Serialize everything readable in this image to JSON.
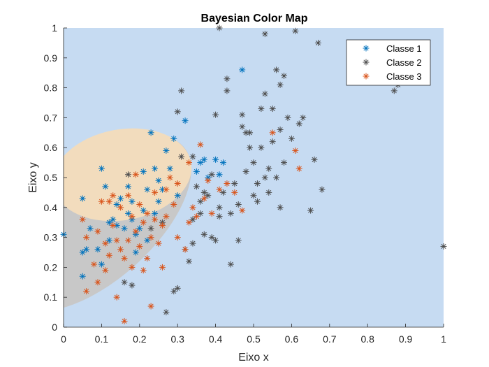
{
  "chart_data": {
    "type": "scatter",
    "title": "Bayesian Color Map",
    "xlabel": "Eixo x",
    "ylabel": "Eixo y",
    "xlim": [
      0,
      1
    ],
    "ylim": [
      0,
      1
    ],
    "xticks": [
      "0",
      "0.1",
      "0.2",
      "0.3",
      "0.4",
      "0.5",
      "0.6",
      "0.7",
      "0.8",
      "0.9",
      "1"
    ],
    "yticks": [
      "0",
      "0.1",
      "0.2",
      "0.3",
      "0.4",
      "0.5",
      "0.6",
      "0.7",
      "0.8",
      "0.9",
      "1"
    ],
    "grid": false,
    "legend_position": "top-right",
    "marker": "asterisk",
    "background_regions": {
      "classe_2_region": "#c6dbf2",
      "classe_3_region": "#f2dcbd",
      "classe_1_region": "#c8c8c8"
    },
    "series": [
      {
        "name": "Classe 1",
        "color": "#0072BD",
        "points": [
          [
            0.0,
            0.31
          ],
          [
            0.05,
            0.25
          ],
          [
            0.06,
            0.26
          ],
          [
            0.05,
            0.17
          ],
          [
            0.07,
            0.33
          ],
          [
            0.09,
            0.26
          ],
          [
            0.1,
            0.21
          ],
          [
            0.1,
            0.53
          ],
          [
            0.12,
            0.35
          ],
          [
            0.13,
            0.36
          ],
          [
            0.14,
            0.41
          ],
          [
            0.15,
            0.43
          ],
          [
            0.14,
            0.34
          ],
          [
            0.16,
            0.33
          ],
          [
            0.17,
            0.47
          ],
          [
            0.18,
            0.42
          ],
          [
            0.18,
            0.36
          ],
          [
            0.19,
            0.31
          ],
          [
            0.2,
            0.33
          ],
          [
            0.21,
            0.39
          ],
          [
            0.21,
            0.52
          ],
          [
            0.22,
            0.46
          ],
          [
            0.23,
            0.65
          ],
          [
            0.24,
            0.53
          ],
          [
            0.24,
            0.38
          ],
          [
            0.25,
            0.42
          ],
          [
            0.26,
            0.46
          ],
          [
            0.27,
            0.59
          ],
          [
            0.28,
            0.53
          ],
          [
            0.29,
            0.63
          ],
          [
            0.3,
            0.44
          ],
          [
            0.32,
            0.69
          ],
          [
            0.35,
            0.52
          ],
          [
            0.36,
            0.55
          ],
          [
            0.37,
            0.56
          ],
          [
            0.38,
            0.5
          ],
          [
            0.4,
            0.56
          ],
          [
            0.41,
            0.51
          ],
          [
            0.42,
            0.55
          ],
          [
            0.47,
            0.86
          ],
          [
            0.17,
            0.38
          ],
          [
            0.12,
            0.29
          ],
          [
            0.11,
            0.47
          ],
          [
            0.05,
            0.43
          ],
          [
            0.25,
            0.49
          ],
          [
            0.19,
            0.25
          ],
          [
            0.22,
            0.29
          ]
        ]
      },
      {
        "name": "Classe 2",
        "color": "#4D4D4D",
        "points": [
          [
            0.17,
            0.51
          ],
          [
            0.16,
            0.15
          ],
          [
            0.18,
            0.14
          ],
          [
            0.23,
            0.33
          ],
          [
            0.26,
            0.35
          ],
          [
            0.27,
            0.05
          ],
          [
            0.29,
            0.12
          ],
          [
            0.3,
            0.13
          ],
          [
            0.31,
            0.79
          ],
          [
            0.3,
            0.72
          ],
          [
            0.32,
            0.26
          ],
          [
            0.33,
            0.22
          ],
          [
            0.34,
            0.28
          ],
          [
            0.34,
            0.57
          ],
          [
            0.35,
            0.47
          ],
          [
            0.36,
            0.42
          ],
          [
            0.36,
            0.38
          ],
          [
            0.37,
            0.31
          ],
          [
            0.38,
            0.44
          ],
          [
            0.39,
            0.3
          ],
          [
            0.39,
            0.51
          ],
          [
            0.4,
            0.29
          ],
          [
            0.41,
            0.4
          ],
          [
            0.41,
            0.37
          ],
          [
            0.42,
            0.45
          ],
          [
            0.43,
            0.83
          ],
          [
            0.43,
            0.79
          ],
          [
            0.44,
            0.38
          ],
          [
            0.44,
            0.21
          ],
          [
            0.45,
            0.48
          ],
          [
            0.46,
            0.29
          ],
          [
            0.47,
            0.71
          ],
          [
            0.47,
            0.67
          ],
          [
            0.48,
            0.52
          ],
          [
            0.49,
            0.65
          ],
          [
            0.5,
            0.44
          ],
          [
            0.5,
            0.55
          ],
          [
            0.51,
            0.48
          ],
          [
            0.52,
            0.6
          ],
          [
            0.52,
            0.73
          ],
          [
            0.53,
            0.5
          ],
          [
            0.53,
            0.78
          ],
          [
            0.54,
            0.45
          ],
          [
            0.55,
            0.62
          ],
          [
            0.55,
            0.73
          ],
          [
            0.56,
            0.5
          ],
          [
            0.56,
            0.86
          ],
          [
            0.57,
            0.81
          ],
          [
            0.57,
            0.66
          ],
          [
            0.58,
            0.55
          ],
          [
            0.58,
            0.84
          ],
          [
            0.59,
            0.7
          ],
          [
            0.6,
            0.63
          ],
          [
            0.61,
            0.99
          ],
          [
            0.62,
            0.68
          ],
          [
            0.63,
            0.7
          ],
          [
            0.65,
            0.39
          ],
          [
            0.66,
            0.56
          ],
          [
            0.67,
            0.95
          ],
          [
            0.68,
            0.46
          ],
          [
            0.53,
            0.98
          ],
          [
            0.41,
            1.0
          ],
          [
            0.4,
            0.71
          ],
          [
            0.48,
            0.65
          ],
          [
            0.57,
            0.4
          ],
          [
            0.87,
            0.79
          ],
          [
            0.88,
            0.81
          ],
          [
            1.0,
            0.27
          ],
          [
            0.31,
            0.57
          ],
          [
            0.34,
            0.36
          ],
          [
            0.37,
            0.45
          ],
          [
            0.46,
            0.41
          ],
          [
            0.49,
            0.6
          ],
          [
            0.51,
            0.42
          ],
          [
            0.54,
            0.53
          ]
        ]
      },
      {
        "name": "Classe 3",
        "color": "#D95319",
        "points": [
          [
            0.05,
            0.36
          ],
          [
            0.06,
            0.3
          ],
          [
            0.06,
            0.12
          ],
          [
            0.08,
            0.21
          ],
          [
            0.09,
            0.15
          ],
          [
            0.1,
            0.42
          ],
          [
            0.11,
            0.28
          ],
          [
            0.11,
            0.19
          ],
          [
            0.12,
            0.24
          ],
          [
            0.13,
            0.44
          ],
          [
            0.13,
            0.34
          ],
          [
            0.14,
            0.29
          ],
          [
            0.14,
            0.1
          ],
          [
            0.15,
            0.4
          ],
          [
            0.15,
            0.26
          ],
          [
            0.16,
            0.23
          ],
          [
            0.16,
            0.02
          ],
          [
            0.17,
            0.44
          ],
          [
            0.17,
            0.29
          ],
          [
            0.18,
            0.37
          ],
          [
            0.19,
            0.51
          ],
          [
            0.19,
            0.32
          ],
          [
            0.2,
            0.27
          ],
          [
            0.2,
            0.41
          ],
          [
            0.21,
            0.19
          ],
          [
            0.21,
            0.35
          ],
          [
            0.22,
            0.38
          ],
          [
            0.22,
            0.23
          ],
          [
            0.23,
            0.07
          ],
          [
            0.23,
            0.3
          ],
          [
            0.24,
            0.36
          ],
          [
            0.24,
            0.45
          ],
          [
            0.25,
            0.28
          ],
          [
            0.26,
            0.34
          ],
          [
            0.27,
            0.46
          ],
          [
            0.27,
            0.37
          ],
          [
            0.28,
            0.5
          ],
          [
            0.29,
            0.41
          ],
          [
            0.3,
            0.3
          ],
          [
            0.3,
            0.48
          ],
          [
            0.32,
            0.26
          ],
          [
            0.33,
            0.35
          ],
          [
            0.34,
            0.4
          ],
          [
            0.35,
            0.37
          ],
          [
            0.36,
            0.61
          ],
          [
            0.37,
            0.43
          ],
          [
            0.38,
            0.49
          ],
          [
            0.39,
            0.38
          ],
          [
            0.41,
            0.46
          ],
          [
            0.43,
            0.48
          ],
          [
            0.45,
            0.45
          ],
          [
            0.47,
            0.39
          ],
          [
            0.55,
            0.65
          ],
          [
            0.61,
            0.59
          ],
          [
            0.62,
            0.53
          ],
          [
            0.09,
            0.32
          ],
          [
            0.12,
            0.42
          ],
          [
            0.18,
            0.2
          ],
          [
            0.26,
            0.2
          ],
          [
            0.33,
            0.55
          ]
        ]
      }
    ]
  }
}
